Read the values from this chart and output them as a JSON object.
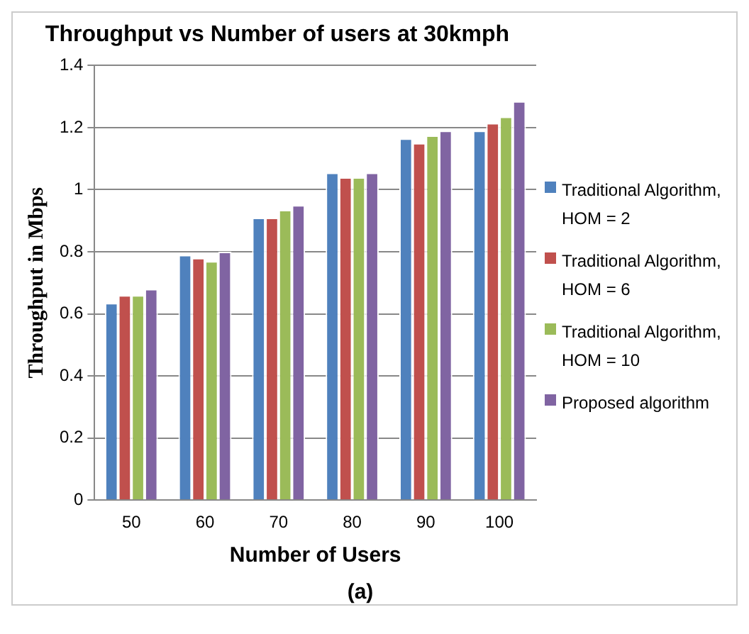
{
  "chart_data": {
    "type": "bar",
    "title": "Throughput vs Number of users at 30kmph",
    "xlabel": "Number of Users",
    "ylabel": "Throughput in Mbps",
    "categories": [
      "50",
      "60",
      "70",
      "80",
      "90",
      "100"
    ],
    "series": [
      {
        "name": "Traditional Algorithm, HOM = 2",
        "color": "#4f81bd",
        "values": [
          0.635,
          0.79,
          0.91,
          1.055,
          1.165,
          1.19
        ]
      },
      {
        "name": "Traditional Algorithm, HOM = 6",
        "color": "#c0504d",
        "values": [
          0.66,
          0.78,
          0.91,
          1.04,
          1.15,
          1.215
        ]
      },
      {
        "name": "Traditional Algorithm, HOM = 10",
        "color": "#9bbb59",
        "values": [
          0.66,
          0.77,
          0.935,
          1.04,
          1.175,
          1.235
        ]
      },
      {
        "name": "Proposed algorithm",
        "color": "#8064a2",
        "values": [
          0.68,
          0.8,
          0.95,
          1.055,
          1.19,
          1.285
        ]
      }
    ],
    "ylim": [
      0,
      1.4
    ],
    "yticks": [
      0,
      0.2,
      0.4,
      0.6,
      0.8,
      1,
      1.2,
      1.4
    ],
    "grid": "y",
    "legend": "right",
    "annotations": [
      "(a)"
    ]
  }
}
